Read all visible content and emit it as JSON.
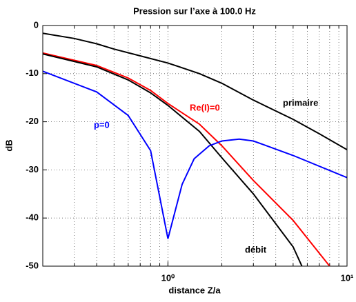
{
  "chart_data": {
    "type": "line",
    "title": "Pression sur l’axe à 100.0 Hz",
    "xlabel": "distance Z/a",
    "ylabel": "dB",
    "xscale": "log",
    "grid": true,
    "xlim": [
      0.2,
      10
    ],
    "ylim": [
      -50,
      0
    ],
    "xticks": [
      {
        "value": 1,
        "label": "10⁰"
      },
      {
        "value": 10,
        "label": "10¹"
      }
    ],
    "yticks": [
      0,
      -10,
      -20,
      -30,
      -40,
      -50
    ],
    "series": [
      {
        "name": "primaire",
        "color": "#000000",
        "x": [
          0.2,
          0.3,
          0.4,
          0.5,
          0.7,
          1,
          1.5,
          2,
          3,
          5,
          7,
          10
        ],
        "values": [
          -1.6,
          -2.7,
          -3.8,
          -4.9,
          -6.3,
          -7.8,
          -10,
          -12,
          -15.5,
          -19.5,
          -22.5,
          -25.8
        ]
      },
      {
        "name": "Re(I)=0",
        "color": "#ff0000",
        "x": [
          0.2,
          0.4,
          0.6,
          0.8,
          1,
          1.5,
          2,
          3,
          5,
          8
        ],
        "values": [
          -5.7,
          -8.3,
          -10.9,
          -13.5,
          -16.2,
          -20.5,
          -25,
          -32.2,
          -40.5,
          -50
        ]
      },
      {
        "name": "débit",
        "color": "#000000",
        "x": [
          0.2,
          0.4,
          0.6,
          0.8,
          1,
          1.5,
          2,
          3,
          5,
          5.6
        ],
        "values": [
          -5.9,
          -8.6,
          -11.3,
          -14,
          -16.6,
          -22,
          -27.5,
          -35,
          -46,
          -50
        ]
      },
      {
        "name": "p=0",
        "color": "#0000ff",
        "x": [
          0.2,
          0.4,
          0.6,
          0.8,
          1,
          1.2,
          1.4,
          1.7,
          2,
          2.5,
          3,
          5,
          10
        ],
        "values": [
          -9.5,
          -13.8,
          -18.7,
          -26,
          -44.3,
          -33,
          -27.7,
          -25,
          -24,
          -23.6,
          -24,
          -27,
          -31.6
        ]
      }
    ]
  }
}
